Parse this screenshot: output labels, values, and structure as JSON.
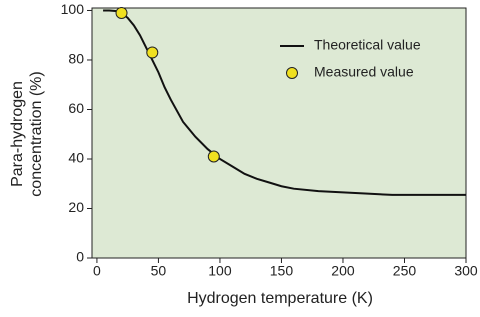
{
  "chart_data": {
    "type": "line",
    "xlabel": "Hydrogen temperature (K)",
    "ylabel": [
      "Para-hydrogen",
      "concentration (%)"
    ],
    "xlim": [
      -4,
      300
    ],
    "ylim": [
      0,
      101
    ],
    "xticks": [
      0,
      50,
      100,
      150,
      200,
      250,
      300
    ],
    "yticks": [
      0,
      20,
      40,
      60,
      80,
      100
    ],
    "background": "#dde9d4",
    "legend": "upper-right",
    "series": [
      {
        "name": "Theoretical value",
        "style": "line",
        "color": "#111111",
        "x": [
          5,
          10,
          15,
          20,
          25,
          30,
          35,
          40,
          45,
          50,
          55,
          60,
          70,
          80,
          90,
          100,
          110,
          120,
          130,
          140,
          150,
          160,
          180,
          200,
          220,
          240,
          260,
          280,
          300
        ],
        "values": [
          100,
          100,
          99.8,
          99,
          97,
          94,
          90,
          85,
          80,
          75,
          69,
          64,
          55,
          49,
          44,
          40,
          37,
          34,
          32,
          30.5,
          29,
          28,
          27,
          26.5,
          26,
          25.5,
          25.5,
          25.5,
          25.5
        ]
      },
      {
        "name": "Measured value",
        "style": "scatter",
        "color": "#f0e020",
        "x": [
          20,
          45,
          95
        ],
        "values": [
          99,
          83,
          41
        ]
      }
    ]
  }
}
